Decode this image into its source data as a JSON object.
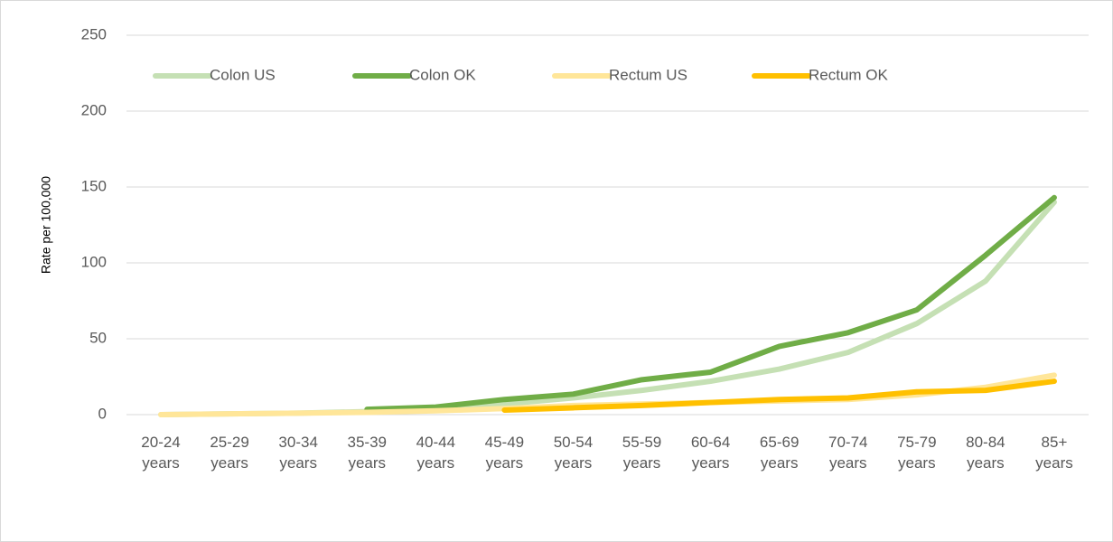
{
  "chart_data": {
    "type": "line",
    "y_label": "Rate per 100,000",
    "categories": [
      "20-24 years",
      "25-29 years",
      "30-34 years",
      "35-39 years",
      "40-44 years",
      "45-49 years",
      "50-54 years",
      "55-59 years",
      "60-64 years",
      "65-69 years",
      "70-74 years",
      "75-79 years",
      "80-84 years",
      "85+ years"
    ],
    "series": [
      {
        "name": "Colon US",
        "color": "#c5e0b4",
        "values": [
          0,
          0.5,
          1,
          2,
          4,
          7,
          11,
          16,
          22,
          30,
          41,
          60,
          88,
          140
        ]
      },
      {
        "name": "Colon OK",
        "color": "#70ad47",
        "values": [
          null,
          null,
          null,
          3.5,
          5,
          10,
          13.5,
          23,
          28,
          45,
          54,
          69,
          105,
          143
        ]
      },
      {
        "name": "Rectum US",
        "color": "#ffe699",
        "values": [
          0,
          0.5,
          1,
          1.5,
          2.5,
          4,
          6,
          7,
          8,
          9,
          10,
          13,
          18,
          26
        ]
      },
      {
        "name": "Rectum OK",
        "color": "#ffc000",
        "values": [
          null,
          null,
          null,
          null,
          null,
          3,
          4.5,
          6,
          8,
          10,
          11,
          15,
          16,
          22
        ]
      }
    ],
    "ylim": [
      0,
      250
    ],
    "yticks": [
      0,
      50,
      100,
      150,
      200,
      250
    ],
    "grid": true,
    "legend": "top"
  }
}
